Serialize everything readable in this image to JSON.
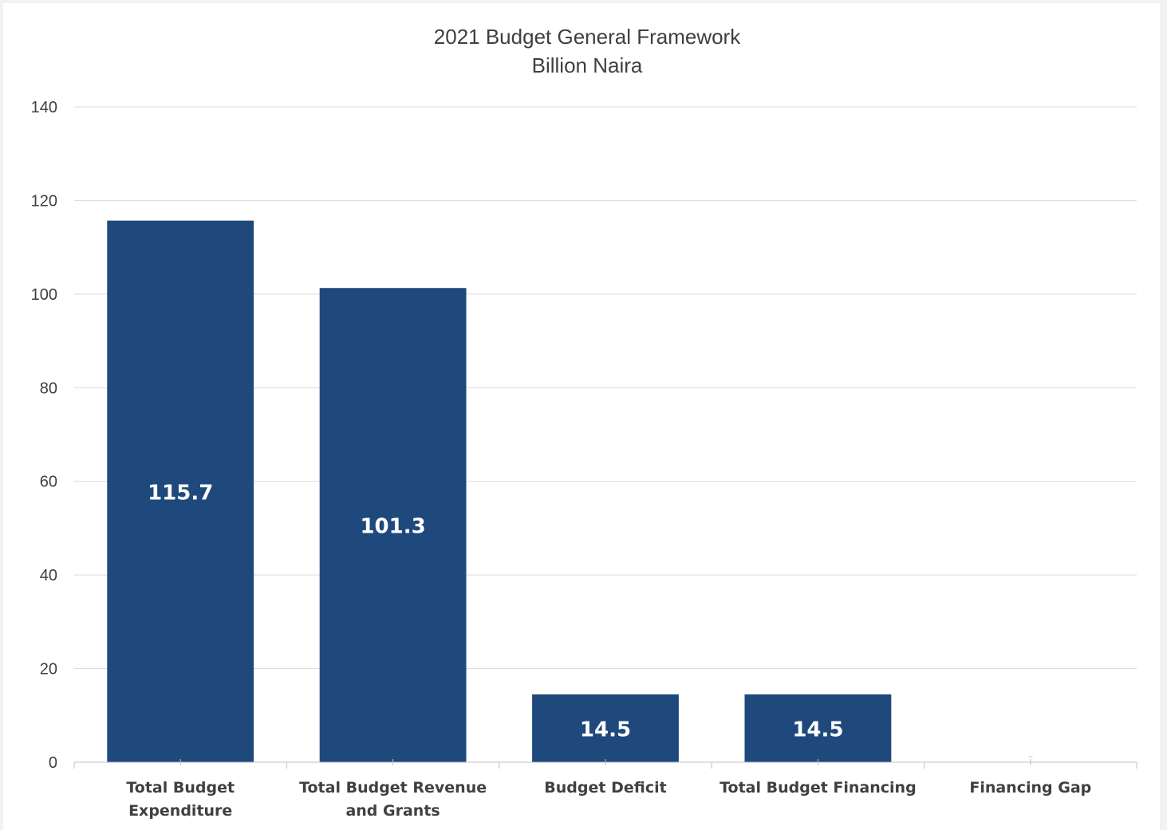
{
  "chart_data": {
    "type": "bar",
    "title": "2021 Budget General Framework",
    "subtitle": "Billion Naira",
    "categories": [
      "Total Budget Expenditure",
      "Total Budget Revenue and Grants",
      "Budget Deficit",
      "Total Budget Financing",
      "Financing Gap"
    ],
    "values": [
      115.7,
      101.3,
      14.5,
      14.5,
      0
    ],
    "data_labels": [
      "115.7",
      "101.3",
      "14.5",
      "14.5",
      "-"
    ],
    "ylim": [
      0,
      140
    ],
    "yticks": [
      0,
      20,
      40,
      60,
      80,
      100,
      120,
      140
    ],
    "grid": true,
    "legend": "none",
    "colors": {
      "bar": "#1f497d",
      "gridline": "#d9d9d9",
      "axis": "#bfbfbf",
      "bar_label": "#ffffff",
      "zero_label": "#d9d9d9"
    }
  }
}
